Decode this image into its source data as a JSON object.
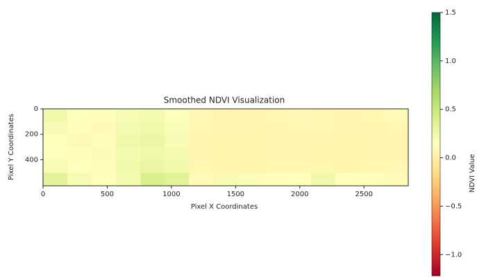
{
  "chart_data": {
    "type": "heatmap",
    "title": "Smoothed NDVI Visualization",
    "x_label": "Pixel X Coordinates",
    "y_label": "Pixel Y Coordinates",
    "xlim": [
      0,
      2845
    ],
    "ylim": [
      605,
      0
    ],
    "xticks": [
      0,
      500,
      1000,
      1500,
      2000,
      2500
    ],
    "yticks": [
      0,
      200,
      400
    ],
    "cmap": "RdYlGn",
    "z": [
      [
        0.25,
        0.15,
        0.12,
        0.2,
        0.22,
        0.15,
        0.08,
        0.05,
        0.05,
        0.06,
        0.08,
        0.06,
        0.05,
        0.06,
        0.1
      ],
      [
        0.2,
        0.12,
        0.1,
        0.22,
        0.25,
        0.18,
        0.06,
        0.05,
        0.05,
        0.05,
        0.06,
        0.06,
        0.05,
        0.05,
        0.06
      ],
      [
        0.15,
        0.1,
        0.12,
        0.25,
        0.28,
        0.2,
        0.05,
        0.04,
        0.04,
        0.05,
        0.05,
        0.05,
        0.04,
        0.05,
        0.05
      ],
      [
        0.15,
        0.12,
        0.1,
        0.22,
        0.25,
        0.22,
        0.05,
        0.04,
        0.04,
        0.05,
        0.05,
        0.04,
        0.04,
        0.05,
        0.05
      ],
      [
        0.2,
        0.15,
        0.12,
        0.25,
        0.28,
        0.25,
        0.06,
        0.05,
        0.05,
        0.06,
        0.06,
        0.06,
        0.05,
        0.06,
        0.08
      ],
      [
        0.35,
        0.2,
        0.15,
        0.22,
        0.4,
        0.35,
        0.1,
        0.2,
        0.18,
        0.12,
        0.15,
        0.25,
        0.15,
        0.12,
        0.1
      ]
    ],
    "colorbar_label": "NDVI Value",
    "clim": [
      -1.22,
      1.5
    ],
    "cticks": [
      {
        "value": -1.0,
        "label": "−1.0"
      },
      {
        "value": -0.5,
        "label": "−0.5"
      },
      {
        "value": 0,
        "label": "0.0"
      },
      0.5,
      {
        "value": 1.0,
        "label": "1.0"
      },
      1.5
    ]
  }
}
